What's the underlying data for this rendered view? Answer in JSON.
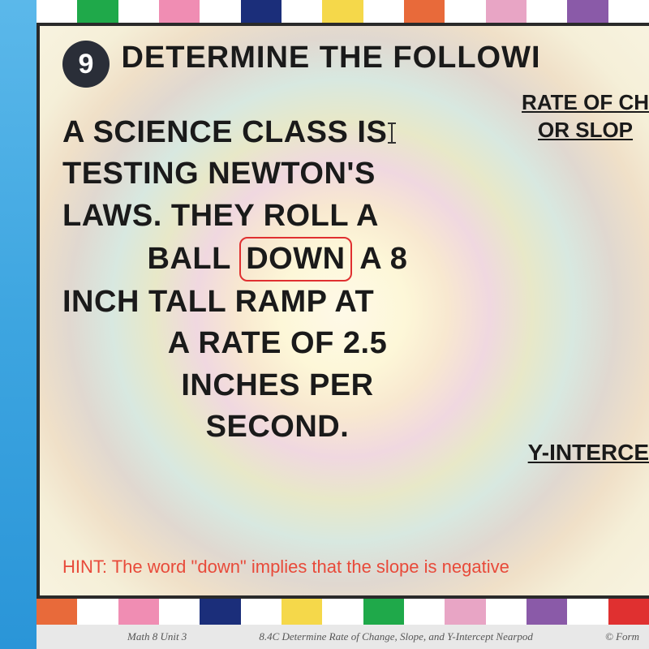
{
  "question": {
    "number": "9",
    "title": "DETERMINE THE FOLLOWI",
    "title_fontsize": 38
  },
  "right_labels": {
    "rate_line1": "RATE OF CH",
    "rate_line2": "OR SLOP",
    "rate_fontsize": 26,
    "y_intercept": "Y-INTERCE",
    "y_fontsize": 28
  },
  "body": {
    "line1": "A SCIENCE CLASS IS",
    "line2": "TESTING NEWTON'S",
    "line3": "LAWS. THEY ROLL A",
    "line4_pre": "BALL",
    "line4_boxed": "DOWN",
    "line4_post": "A 8",
    "line5": "INCH TALL RAMP AT",
    "line6": "A RATE OF 2.5",
    "line7": "INCHES PER",
    "line8": "SECOND.",
    "fontsize": 38
  },
  "hint": "HINT: The word \"down\" implies that the slope is negative",
  "footer": {
    "left": "Math 8 Unit 3",
    "center": "8.4C Determine Rate of Change, Slope, and Y-Intercept Nearpod",
    "right": "© Form"
  },
  "palette": {
    "top_bar": [
      "#ffffff",
      "#1fa94a",
      "#ffffff",
      "#f08db3",
      "#ffffff",
      "#1b2e7a",
      "#ffffff",
      "#f5d84a",
      "#ffffff",
      "#e86a3a",
      "#ffffff",
      "#e8a5c5",
      "#ffffff",
      "#8a5aa8",
      "#ffffff"
    ],
    "bottom_bar": [
      "#e86a3a",
      "#ffffff",
      "#f08db3",
      "#ffffff",
      "#1b2e7a",
      "#ffffff",
      "#f5d84a",
      "#ffffff",
      "#1fa94a",
      "#ffffff",
      "#e8a5c5",
      "#ffffff",
      "#8a5aa8",
      "#ffffff",
      "#e03030"
    ]
  }
}
